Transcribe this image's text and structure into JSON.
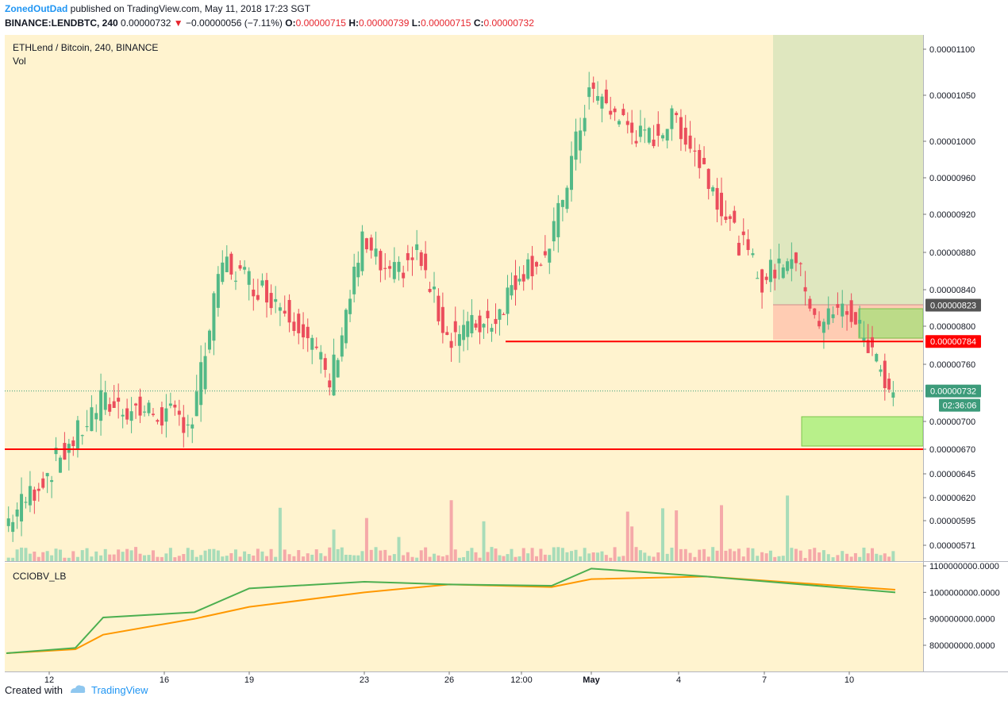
{
  "header": {
    "author": "ZonedOutDad",
    "published": "published on TradingView.com, May 11, 2018 17:23 SGT",
    "symbol": "BINANCE:LENDBTC, 240",
    "last": "0.00000732",
    "change_arrow": "▼",
    "change": "−0.00000056 (−7.11%)",
    "o_label": "O:",
    "o": "0.00000715",
    "h_label": "H:",
    "h": "0.00000739",
    "l_label": "L:",
    "l": "0.00000715",
    "c_label": "C:",
    "c": "0.00000732"
  },
  "plot": {
    "title": "ETHLend / Bitcoin, 240, BINANCE",
    "volume_label": "Vol",
    "indicator_label": "CCIOBV_LB"
  },
  "footer": {
    "created_with": "Created with",
    "brand": "TradingView"
  },
  "colors": {
    "up": "#53b987",
    "down": "#eb4d5c",
    "background": "#fff3cf",
    "obv": "#4caf50",
    "obv_signal": "#ff9800",
    "support": "#ff0000"
  },
  "chart_data": [
    {
      "type": "candlestick",
      "x_ticks": [
        "12",
        "16",
        "19",
        "23",
        "26",
        "12:00",
        "May",
        "4",
        "7",
        "10"
      ],
      "y_ticks": [
        "0.00001100",
        "0.00001050",
        "0.00001000",
        "0.00000960",
        "0.00000920",
        "0.00000880",
        "0.00000840",
        "0.00000800",
        "0.00000760",
        "0.00000700",
        "0.00000670",
        "0.00000645",
        "0.00000620",
        "0.00000595",
        "0.00000571"
      ],
      "price_labels": [
        {
          "value": "0.00000823",
          "role": "resistance"
        },
        {
          "value": "0.00000784",
          "role": "support"
        },
        {
          "value": "0.00000732",
          "role": "last"
        },
        {
          "value": "02:36:06",
          "role": "countdown"
        }
      ],
      "horizontal_lines": [
        7.84e-06,
        6.7e-06
      ],
      "last_price": 7.32e-06,
      "anchors": [
        {
          "x": "start",
          "price": 5.9e-06
        },
        {
          "x": "13",
          "price": 6.8e-06
        },
        {
          "x": "14",
          "price": 7.2e-06
        },
        {
          "x": "17",
          "price": 7e-06
        },
        {
          "x": "18",
          "price": 8.7e-06
        },
        {
          "x": "20",
          "price": 8.3e-06
        },
        {
          "x": "21",
          "price": 8e-06
        },
        {
          "x": "22",
          "price": 7.4e-06
        },
        {
          "x": "23",
          "price": 8.9e-06
        },
        {
          "x": "24",
          "price": 8.5e-06
        },
        {
          "x": "25",
          "price": 8.8e-06
        },
        {
          "x": "26",
          "price": 7.9e-06
        },
        {
          "x": "27",
          "price": 8e-06
        },
        {
          "x": "28",
          "price": 8.1e-06
        },
        {
          "x": "29",
          "price": 8.6e-06
        },
        {
          "x": "30",
          "price": 8.8e-06
        },
        {
          "x": "May 1",
          "price": 1.055e-05
        },
        {
          "x": "3",
          "price": 1e-05
        },
        {
          "x": "4",
          "price": 1.025e-05
        },
        {
          "x": "5",
          "price": 9.7e-06
        },
        {
          "x": "6",
          "price": 9e-06
        },
        {
          "x": "7",
          "price": 8.5e-06
        },
        {
          "x": "8",
          "price": 8.8e-06
        },
        {
          "x": "9",
          "price": 8.05e-06
        },
        {
          "x": "10",
          "price": 8.2e-06
        },
        {
          "x": "11",
          "price": 7.32e-06
        }
      ]
    },
    {
      "type": "line",
      "name": "CCIOBV_LB",
      "y_ticks": [
        "1100000000.0000",
        "1000000000.0000",
        "900000000.0000",
        "800000000.0000"
      ],
      "series_shape": [
        {
          "x": "start",
          "obv": 770000000,
          "signal": 770000000
        },
        {
          "x": "13",
          "obv": 790000000,
          "signal": 785000000
        },
        {
          "x": "14",
          "obv": 905000000,
          "signal": 840000000
        },
        {
          "x": "17",
          "obv": 925000000,
          "signal": 900000000
        },
        {
          "x": "19",
          "obv": 1015000000,
          "signal": 945000000
        },
        {
          "x": "23",
          "obv": 1040000000,
          "signal": 1000000000
        },
        {
          "x": "26",
          "obv": 1030000000,
          "signal": 1030000000
        },
        {
          "x": "30",
          "obv": 1025000000,
          "signal": 1020000000
        },
        {
          "x": "May 1",
          "obv": 1090000000,
          "signal": 1050000000
        },
        {
          "x": "5",
          "obv": 1060000000,
          "signal": 1060000000
        },
        {
          "x": "11",
          "obv": 1000000000,
          "signal": 1010000000
        }
      ]
    }
  ]
}
